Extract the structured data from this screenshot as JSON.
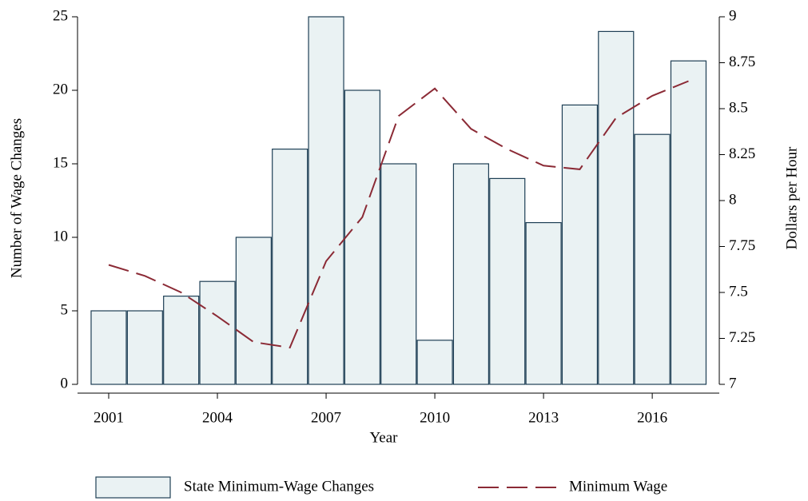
{
  "chart_data": {
    "type": "bar-line",
    "x_label": "Year",
    "y_label": "Number of Wage Changes",
    "y2_label": "Dollars per Hour",
    "x": [
      2001,
      2002,
      2003,
      2004,
      2005,
      2006,
      2007,
      2008,
      2009,
      2010,
      2011,
      2012,
      2013,
      2014,
      2015,
      2016,
      2017
    ],
    "series": [
      {
        "name": "State Minimum-Wage Changes",
        "type": "bar",
        "color": "#eaf2f3",
        "edge_color": "#1e3f55",
        "values": [
          5,
          5,
          6,
          7,
          10,
          16,
          25,
          20,
          15,
          3,
          15,
          14,
          11,
          19,
          24,
          17,
          22
        ]
      },
      {
        "name": "Minimum Wage",
        "type": "line",
        "axis": "y2",
        "color": "#8b2a35",
        "dashed": true,
        "values": [
          7.65,
          7.59,
          7.5,
          7.37,
          7.23,
          7.2,
          7.67,
          7.91,
          8.46,
          8.61,
          8.39,
          8.28,
          8.19,
          8.17,
          8.45,
          8.57,
          8.65
        ]
      }
    ],
    "xlim": [
      2000.14,
      2017.85
    ],
    "xticks": [
      2001,
      2004,
      2007,
      2010,
      2013,
      2016
    ],
    "ylim": [
      0,
      25
    ],
    "yticks": [
      0,
      5,
      10,
      15,
      20,
      25
    ],
    "y2lim": [
      7,
      9
    ],
    "y2ticks": [
      7,
      7.25,
      7.5,
      7.75,
      8,
      8.25,
      8.5,
      8.75,
      9
    ],
    "legend": "bottom"
  }
}
